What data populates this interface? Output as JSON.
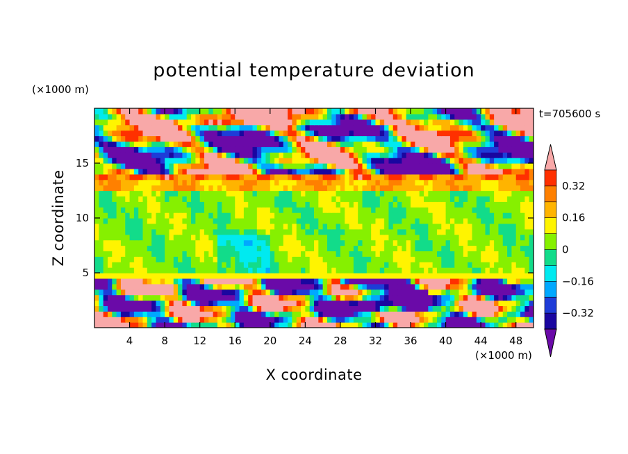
{
  "title": "potential temperature deviation",
  "time_label": "t=705600 s",
  "y_unit": "(×1000 m)",
  "x_unit": "(×1000 m)",
  "colors": {
    "levels": [
      "#6a0aa8",
      "#1a06a0",
      "#1e3cd8",
      "#00a8ff",
      "#00eaf0",
      "#12dc8a",
      "#86f000",
      "#fff400",
      "#ffb400",
      "#ff8000",
      "#ff3000",
      "#f8a8a8"
    ],
    "frame": "#000000"
  },
  "chart_data": {
    "type": "heatmap",
    "title": "potential temperature deviation",
    "xlabel": "X coordinate",
    "ylabel": "Z coordinate",
    "x_unit": "×1000 m",
    "y_unit": "×1000 m",
    "xlim": [
      0,
      50
    ],
    "ylim": [
      0,
      20
    ],
    "x_ticks": [
      4,
      8,
      12,
      16,
      20,
      24,
      28,
      32,
      36,
      40,
      44,
      48
    ],
    "y_ticks": [
      5,
      10,
      15
    ],
    "colorbar": {
      "tick_values": [
        0.32,
        0.16,
        0,
        -0.16,
        -0.32
      ],
      "tick_labels": [
        "0.32",
        "0.16",
        "0",
        "−0.16",
        "−0.32"
      ],
      "level_step": 0.08,
      "extend": "both"
    },
    "fields": {
      "upper_layer": {
        "z_range": [
          13.5,
          20
        ],
        "pattern": "alternating positive (pink) and negative (purple) patches"
      },
      "middle_layer": {
        "z_range": [
          5,
          13
        ],
        "value_approx": 0.03,
        "pattern": "mostly near zero (green)"
      },
      "lower_layer": {
        "z_range": [
          0,
          5
        ],
        "pattern": "strong positive/negative turbulent eddies"
      }
    }
  }
}
